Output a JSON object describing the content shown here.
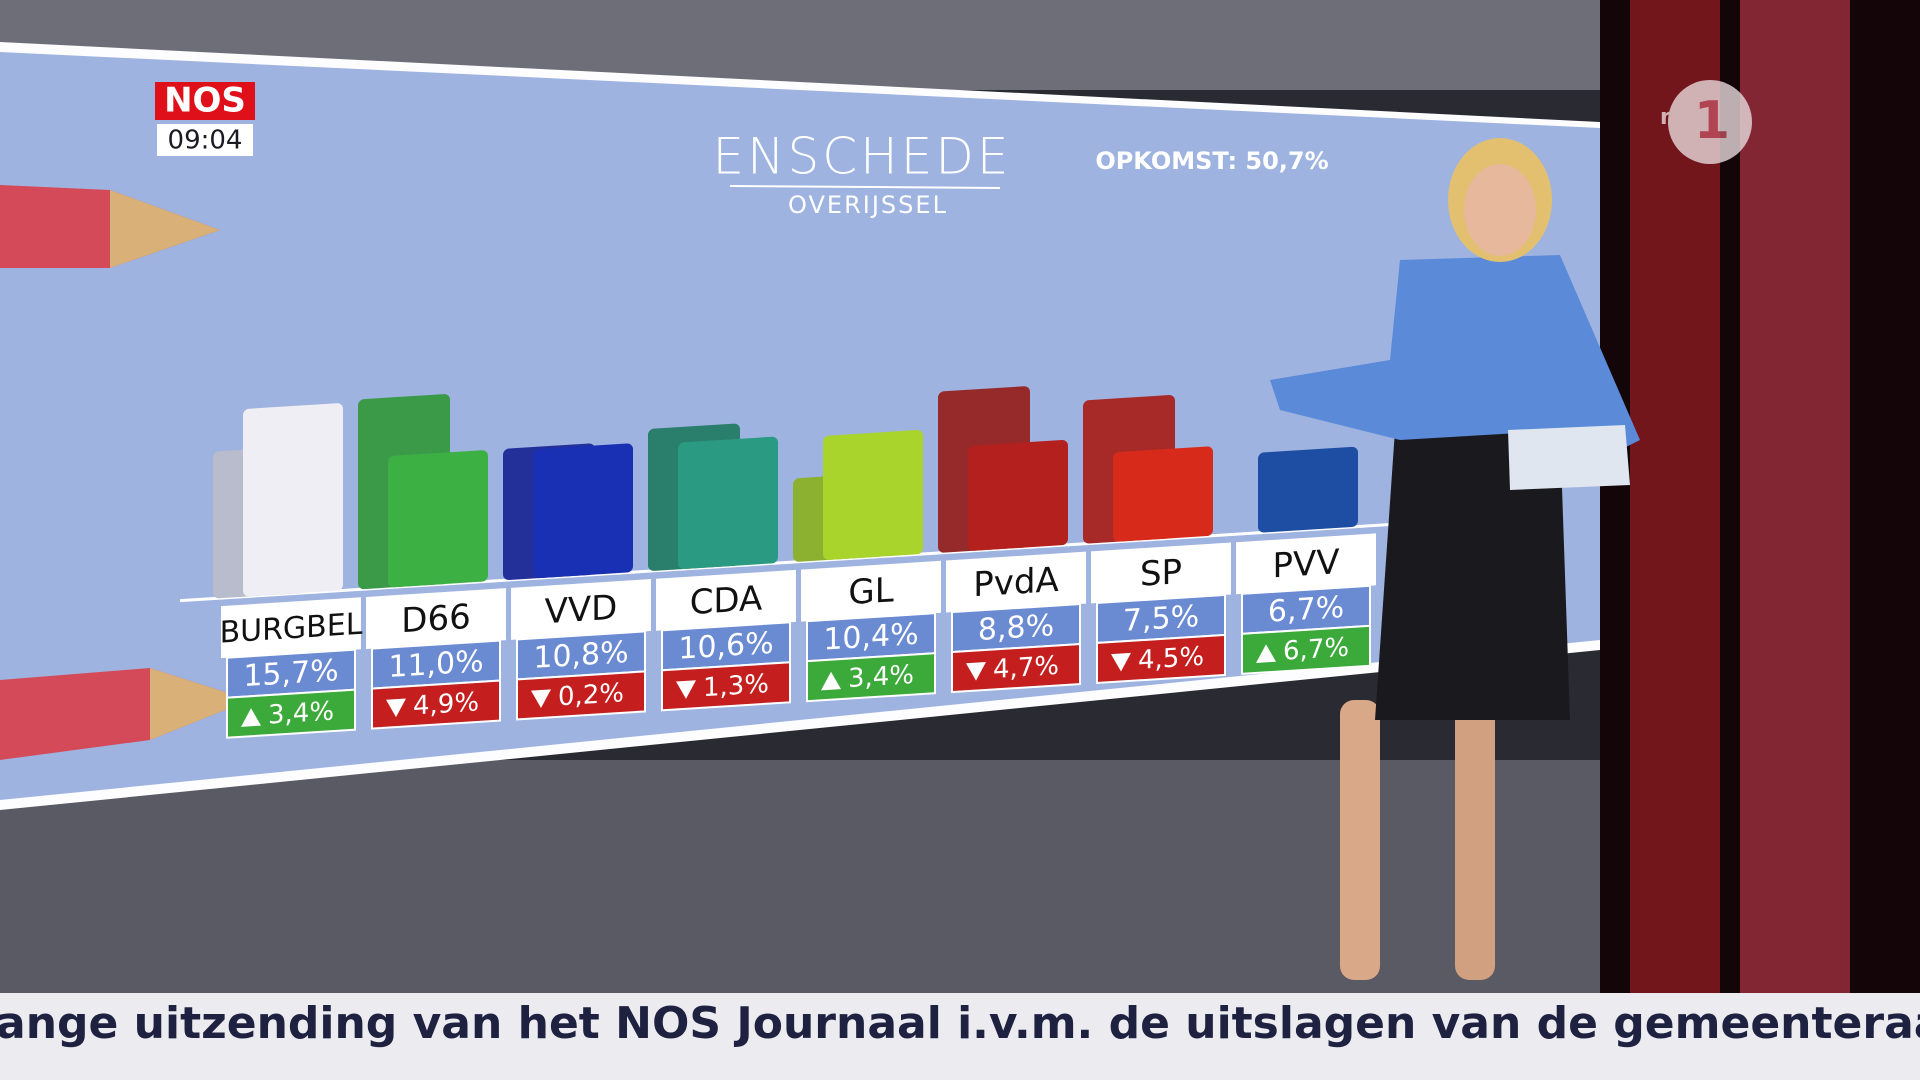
{
  "broadcast": {
    "logo": "NOS",
    "time": "09:04",
    "channel": "npo",
    "channel_number": "1",
    "ticker": "ange uitzending van het NOS Journaal i.v.m. de uitslagen van de gemeenteraadsver"
  },
  "chart_data": {
    "type": "bar",
    "title": "ENSCHEDE",
    "subtitle": "OVERIJSSEL",
    "annotation": "OPKOMST: 50,7%",
    "categories": [
      "BURGBEL",
      "D66",
      "VVD",
      "CDA",
      "GL",
      "PvdA",
      "SP",
      "PVV"
    ],
    "values": [
      15.7,
      11.0,
      10.8,
      10.6,
      10.4,
      8.8,
      7.5,
      6.7
    ],
    "value_labels": [
      "15,7%",
      "11,0%",
      "10,8%",
      "10,6%",
      "10,4%",
      "8,8%",
      "7,5%",
      "6,7%"
    ],
    "colors": [
      "#eeeef4",
      "#3cb043",
      "#1a30b4",
      "#2a9a82",
      "#a8d42c",
      "#b4201e",
      "#d82a1a",
      "#1e4ea4"
    ],
    "previous_values": [
      12.3,
      15.9,
      11.0,
      11.9,
      7.0,
      13.5,
      12.0,
      0
    ],
    "previous_colors": [
      "#b8bccc",
      "#3a9a48",
      "#24309a",
      "#2a7e6c",
      "#8cb030",
      "#962a2a",
      "#a82a28",
      "#1a3e84"
    ],
    "changes": [
      3.4,
      -4.9,
      -0.2,
      -1.3,
      3.4,
      -4.7,
      -4.5,
      6.7
    ],
    "change_labels": [
      "3,4%",
      "4,9%",
      "0,2%",
      "1,3%",
      "3,4%",
      "4,7%",
      "4,5%",
      "6,7%"
    ]
  }
}
